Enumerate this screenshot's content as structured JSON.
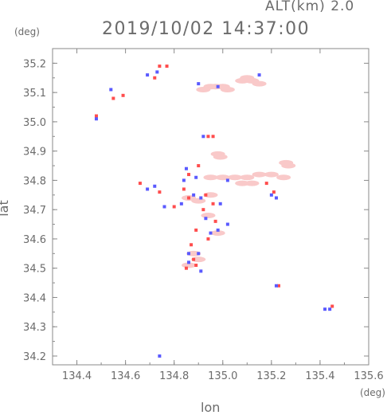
{
  "header": {
    "alt_label": "ALT(km) 2.0",
    "timestamp": "2019/10/02 14:37:00"
  },
  "chart_data": {
    "type": "scatter",
    "title": "2019/10/02 14:37:00",
    "xlabel": "lon",
    "ylabel": "lat",
    "x_unit": "(deg)",
    "y_unit": "(deg)",
    "xlim": [
      134.3,
      135.6
    ],
    "ylim": [
      34.17,
      35.25
    ],
    "xticks": [
      "134.4",
      "134.6",
      "134.8",
      "135.0",
      "135.2",
      "135.4",
      "135.6"
    ],
    "yticks": [
      "34.2",
      "34.3",
      "34.4",
      "34.5",
      "34.6",
      "34.7",
      "34.8",
      "34.9",
      "35.0",
      "35.1",
      "35.2"
    ],
    "colors": {
      "positive": "#ff4d4d",
      "negative": "#5a5aff",
      "weak": "#f9c9c9",
      "axis": "#8a8a8a"
    },
    "series": [
      {
        "kind": "weak",
        "points": [
          [
            134.95,
            35.12
          ],
          [
            134.97,
            35.12
          ],
          [
            135.0,
            35.12
          ],
          [
            134.92,
            35.11
          ],
          [
            135.02,
            35.11
          ],
          [
            135.08,
            35.14
          ],
          [
            135.12,
            35.14
          ],
          [
            135.15,
            35.13
          ],
          [
            135.1,
            35.15
          ],
          [
            134.98,
            34.89
          ],
          [
            134.99,
            34.88
          ],
          [
            135.26,
            34.86
          ],
          [
            135.27,
            34.85
          ],
          [
            134.95,
            34.81
          ],
          [
            135.0,
            34.81
          ],
          [
            135.05,
            34.81
          ],
          [
            135.1,
            34.81
          ],
          [
            135.15,
            34.82
          ],
          [
            135.2,
            34.82
          ],
          [
            135.25,
            34.81
          ],
          [
            135.12,
            34.79
          ],
          [
            135.08,
            34.79
          ],
          [
            134.86,
            34.74
          ],
          [
            134.9,
            34.73
          ],
          [
            134.95,
            34.75
          ],
          [
            134.94,
            34.68
          ],
          [
            134.98,
            34.62
          ],
          [
            134.88,
            34.55
          ],
          [
            134.9,
            34.53
          ],
          [
            134.86,
            34.51
          ]
        ]
      },
      {
        "kind": "positive",
        "points": [
          [
            134.77,
            35.19
          ],
          [
            134.74,
            35.19
          ],
          [
            134.72,
            35.15
          ],
          [
            134.59,
            35.09
          ],
          [
            134.55,
            35.08
          ],
          [
            134.48,
            35.02
          ],
          [
            134.94,
            34.95
          ],
          [
            134.96,
            34.95
          ],
          [
            134.9,
            34.85
          ],
          [
            134.86,
            34.82
          ],
          [
            134.84,
            34.77
          ],
          [
            134.74,
            34.76
          ],
          [
            134.66,
            34.79
          ],
          [
            134.93,
            34.75
          ],
          [
            134.96,
            34.72
          ],
          [
            135.18,
            34.79
          ],
          [
            135.21,
            34.76
          ],
          [
            134.86,
            34.74
          ],
          [
            134.92,
            34.7
          ],
          [
            134.97,
            34.66
          ],
          [
            134.89,
            34.63
          ],
          [
            134.94,
            34.6
          ],
          [
            134.87,
            34.58
          ],
          [
            134.88,
            34.53
          ],
          [
            134.85,
            34.5
          ],
          [
            135.23,
            34.44
          ],
          [
            135.45,
            34.37
          ],
          [
            134.8,
            34.71
          ],
          [
            134.89,
            34.51
          ]
        ]
      },
      {
        "kind": "negative",
        "points": [
          [
            134.54,
            35.11
          ],
          [
            134.69,
            35.16
          ],
          [
            134.73,
            35.17
          ],
          [
            134.9,
            35.13
          ],
          [
            134.98,
            35.12
          ],
          [
            135.15,
            35.16
          ],
          [
            134.92,
            34.95
          ],
          [
            134.85,
            34.84
          ],
          [
            134.84,
            34.8
          ],
          [
            134.89,
            34.81
          ],
          [
            135.02,
            34.8
          ],
          [
            135.2,
            34.75
          ],
          [
            135.22,
            34.74
          ],
          [
            134.69,
            34.77
          ],
          [
            134.72,
            34.78
          ],
          [
            134.83,
            34.72
          ],
          [
            134.88,
            34.75
          ],
          [
            134.91,
            34.74
          ],
          [
            134.99,
            34.72
          ],
          [
            134.93,
            34.67
          ],
          [
            135.02,
            34.65
          ],
          [
            134.98,
            34.63
          ],
          [
            134.95,
            34.62
          ],
          [
            134.86,
            34.55
          ],
          [
            134.9,
            34.55
          ],
          [
            134.86,
            34.52
          ],
          [
            134.91,
            34.49
          ],
          [
            135.22,
            34.44
          ],
          [
            135.44,
            34.36
          ],
          [
            135.42,
            34.36
          ],
          [
            134.74,
            34.2
          ],
          [
            134.48,
            35.01
          ],
          [
            134.76,
            34.71
          ]
        ]
      }
    ]
  }
}
